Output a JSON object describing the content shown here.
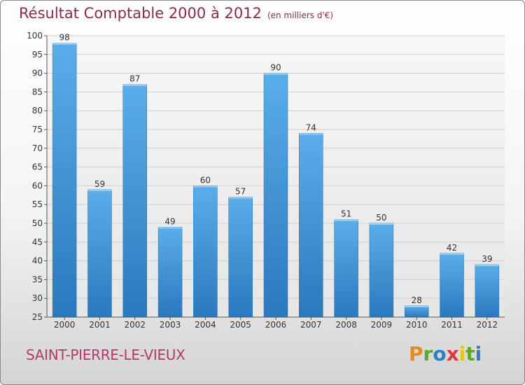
{
  "header": {
    "title": "Résultat Comptable 2000 à 2012",
    "subtitle": "(en milliers d'€)"
  },
  "footer": {
    "commune": "SAINT-PIERRE-LE-VIEUX",
    "logo_letters": [
      "P",
      "r",
      "o",
      "x",
      "i",
      "t",
      "i"
    ],
    "logo_colors": [
      "#e8891c",
      "#5aa82e",
      "#2f7fc1",
      "#d93a3a",
      "#e8c21c",
      "#5aa82e",
      "#2f7fc1"
    ]
  },
  "chart_data": {
    "type": "bar",
    "title": "Résultat Comptable 2000 à 2012",
    "subtitle": "(en milliers d'€)",
    "categories": [
      "2000",
      "2001",
      "2002",
      "2003",
      "2004",
      "2005",
      "2006",
      "2007",
      "2008",
      "2009",
      "2010",
      "2011",
      "2012"
    ],
    "values": [
      98,
      59,
      87,
      49,
      60,
      57,
      90,
      74,
      51,
      50,
      28,
      42,
      39
    ],
    "ylim": [
      25,
      100
    ],
    "yticks": [
      25,
      30,
      35,
      40,
      45,
      50,
      55,
      60,
      65,
      70,
      75,
      80,
      85,
      90,
      95,
      100
    ],
    "xlabel": "",
    "ylabel": "",
    "grid": true,
    "bar_color": "#3b8ed6"
  }
}
